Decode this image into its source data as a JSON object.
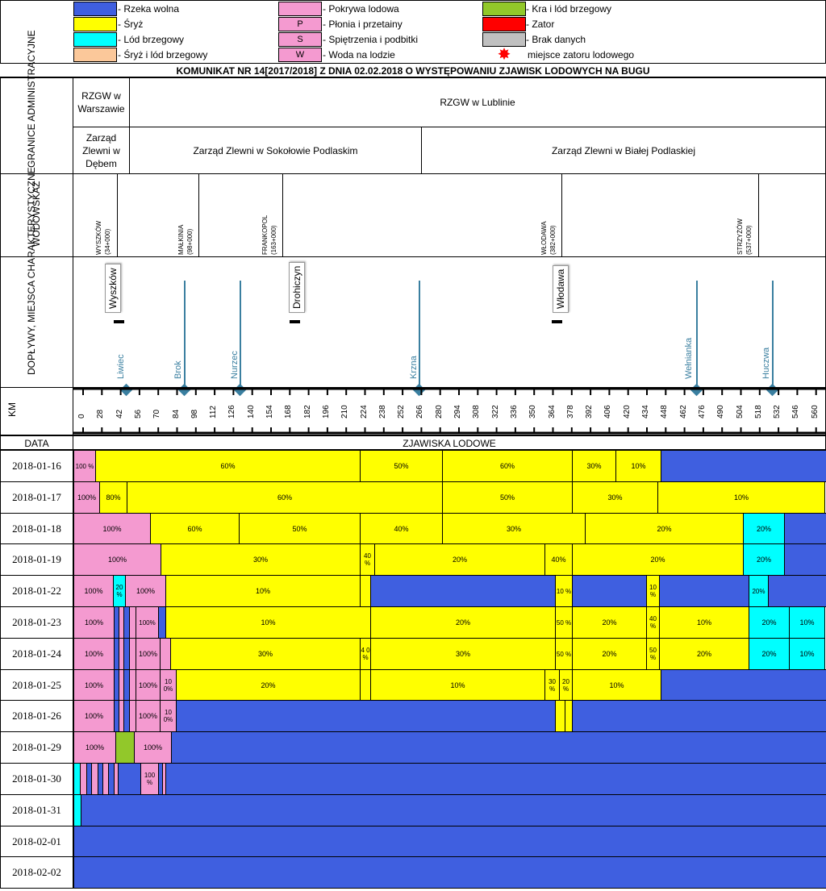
{
  "legend": [
    {
      "label": "- Rzeka wolna",
      "color": "#3f5fe0",
      "code": ""
    },
    {
      "label": "- Śryż",
      "color": "#ffff00",
      "code": ""
    },
    {
      "label": "- Lód brzegowy",
      "color": "#00ffff",
      "code": ""
    },
    {
      "label": "- Śryż i lód brzegowy",
      "color": "#fbc89a",
      "code": ""
    },
    {
      "label": "- Pokrywa lodowa",
      "color": "#f49ad0",
      "code": ""
    },
    {
      "label": "- Płonia i przetainy",
      "color": "#f49ad0",
      "code": "P"
    },
    {
      "label": "- Spiętrzenia i podbitki",
      "color": "#f49ad0",
      "code": "S"
    },
    {
      "label": "- Woda na lodzie",
      "color": "#f49ad0",
      "code": "W"
    },
    {
      "label": "- Kra i lód brzegowy",
      "color": "#92c82a",
      "code": ""
    },
    {
      "label": "- Zator",
      "color": "#ff0000",
      "code": ""
    },
    {
      "label": "- Brak danych",
      "color": "#c0c0c0",
      "code": ""
    },
    {
      "label": "miejsce zatoru lodowego",
      "color": "#ff0000",
      "code": ""
    }
  ],
  "title": "KOMUNIKAT NR 14[2017/2018] Z DNIA 02.02.2018 O WYSTĘPOWANIU ZJAWISK LODOWYCH NA BUGU",
  "rows": {
    "admin": "GRANICE ADMINISTRACYJNE",
    "gauge": "WODOWSKAZ",
    "tribs": "DOPŁYWY, MIEJSCA CHARAKTERYSTYCZNE",
    "km": "KM",
    "date": "DATA",
    "phenomena": "ZJAWISKA LODOWE"
  },
  "admin": {
    "rzgw_w": "RZGW w Warszawie",
    "rzgw_l": "RZGW w Lublinie",
    "zz_debe": "Zarząd Zlewni w Dębem",
    "zz_sok": "Zarząd Zlewni w Sokołowie Podlaskim",
    "zz_bial": "Zarząd Zlewni w Białej Podlaskiej"
  },
  "gauges": [
    {
      "name": "WYSZKÓW",
      "km": "(34+000)"
    },
    {
      "name": "MAŁKINIA",
      "km": "(98+000)"
    },
    {
      "name": "FRANKOPOL",
      "km": "(163+000)"
    },
    {
      "name": "WŁODAWA",
      "km": "(382+000)"
    },
    {
      "name": "STRZYŻÓW",
      "km": "(537+000)"
    }
  ],
  "places": [
    "Wyszków",
    "Drohiczyn",
    "Włodawa"
  ],
  "tributaries": [
    "Liwiec",
    "Brok",
    "Nurzec",
    "Krzna",
    "Wełnianka",
    "Huczwa"
  ],
  "km_ticks": [
    "0",
    "28",
    "42",
    "56",
    "70",
    "84",
    "98",
    "112",
    "126",
    "140",
    "154",
    "168",
    "182",
    "196",
    "210",
    "224",
    "238",
    "252",
    "266",
    "280",
    "294",
    "308",
    "322",
    "336",
    "350",
    "364",
    "378",
    "392",
    "406",
    "420",
    "434",
    "448",
    "462",
    "476",
    "490",
    "504",
    "518",
    "532",
    "546",
    "560",
    "587"
  ],
  "chart_data": {
    "type": "table",
    "title": "KOMUNIKAT NR 14[2017/2018] Z DNIA 02.02.2018 O WYSTĘPOWANIU ZJAWISK LODOWYCH NA BUGU",
    "xlabel": "KM",
    "ylabel": "DATA",
    "dates": [
      "2018-01-16",
      "2018-01-17",
      "2018-01-18",
      "2018-01-19",
      "2018-01-22",
      "2018-01-23",
      "2018-01-24",
      "2018-01-25",
      "2018-01-26",
      "2018-01-29",
      "2018-01-30",
      "2018-01-31",
      "2018-02-01",
      "2018-02-02"
    ],
    "labels": [
      [
        "100 %",
        "60%",
        "50%",
        "60%",
        "30%",
        "10%"
      ],
      [
        "100%",
        "80%",
        "60%",
        "50%",
        "30%",
        "10%"
      ],
      [
        "100%",
        "60%",
        "50%",
        "40%",
        "30%",
        "20%",
        "20%"
      ],
      [
        "100%",
        "30%",
        "40 %",
        "20%",
        "40%",
        "20%",
        "20%"
      ],
      [
        "100%",
        "20 %",
        "100%",
        "10%",
        "10 %",
        "10 %",
        "20%"
      ],
      [
        "100%",
        "100%",
        "10%",
        "20%",
        "50 %",
        "20%",
        "40 %",
        "10%",
        "20%",
        "10%"
      ],
      [
        "100%",
        "100%",
        "30%",
        "4 0 %",
        "30%",
        "50 %",
        "20%",
        "50 %",
        "20%",
        "20%",
        "10%"
      ],
      [
        "100%",
        "100%",
        "10 0%",
        "20%",
        "10%",
        "30 %",
        "20 %",
        "10%"
      ],
      [
        "100%",
        "100%",
        "10 0%"
      ],
      [
        "100%",
        "100%"
      ],
      [
        "100 %"
      ],
      [],
      [],
      []
    ]
  }
}
